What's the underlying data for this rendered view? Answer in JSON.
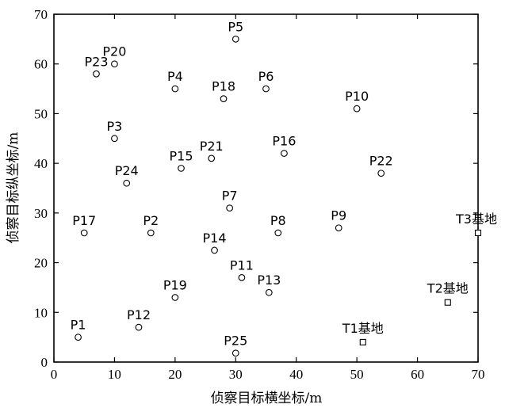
{
  "chart_data": {
    "type": "scatter",
    "xlabel": "侦察目标横坐标/m",
    "ylabel": "侦察目标纵坐标/m",
    "xlim": [
      0,
      70
    ],
    "ylim": [
      0,
      70
    ],
    "xticks": [
      0,
      10,
      20,
      30,
      40,
      50,
      60,
      70
    ],
    "yticks": [
      0,
      10,
      20,
      30,
      40,
      50,
      60,
      70
    ],
    "grid": false,
    "targets": [
      {
        "label": "P1",
        "x": 4,
        "y": 5
      },
      {
        "label": "P2",
        "x": 16,
        "y": 26
      },
      {
        "label": "P3",
        "x": 10,
        "y": 45
      },
      {
        "label": "P4",
        "x": 20,
        "y": 55
      },
      {
        "label": "P5",
        "x": 30,
        "y": 65
      },
      {
        "label": "P6",
        "x": 35,
        "y": 55
      },
      {
        "label": "P7",
        "x": 29,
        "y": 31
      },
      {
        "label": "P8",
        "x": 37,
        "y": 26
      },
      {
        "label": "P9",
        "x": 47,
        "y": 27
      },
      {
        "label": "P10",
        "x": 50,
        "y": 51
      },
      {
        "label": "P11",
        "x": 31,
        "y": 17
      },
      {
        "label": "P12",
        "x": 14,
        "y": 7
      },
      {
        "label": "P13",
        "x": 35.5,
        "y": 14
      },
      {
        "label": "P14",
        "x": 26.5,
        "y": 22.5
      },
      {
        "label": "P15",
        "x": 21,
        "y": 39
      },
      {
        "label": "P16",
        "x": 38,
        "y": 42
      },
      {
        "label": "P17",
        "x": 5,
        "y": 26
      },
      {
        "label": "P18",
        "x": 28,
        "y": 53
      },
      {
        "label": "P19",
        "x": 20,
        "y": 13
      },
      {
        "label": "P20",
        "x": 10,
        "y": 60
      },
      {
        "label": "P21",
        "x": 26,
        "y": 41
      },
      {
        "label": "P22",
        "x": 54,
        "y": 38
      },
      {
        "label": "P23",
        "x": 7,
        "y": 58
      },
      {
        "label": "P24",
        "x": 12,
        "y": 36
      },
      {
        "label": "P25",
        "x": 30,
        "y": 1.8
      }
    ],
    "bases": [
      {
        "label": "T1基地",
        "x": 51,
        "y": 4
      },
      {
        "label": "T2基地",
        "x": 65,
        "y": 12
      },
      {
        "label": "T3基地",
        "x": 70,
        "y": 26
      }
    ]
  }
}
